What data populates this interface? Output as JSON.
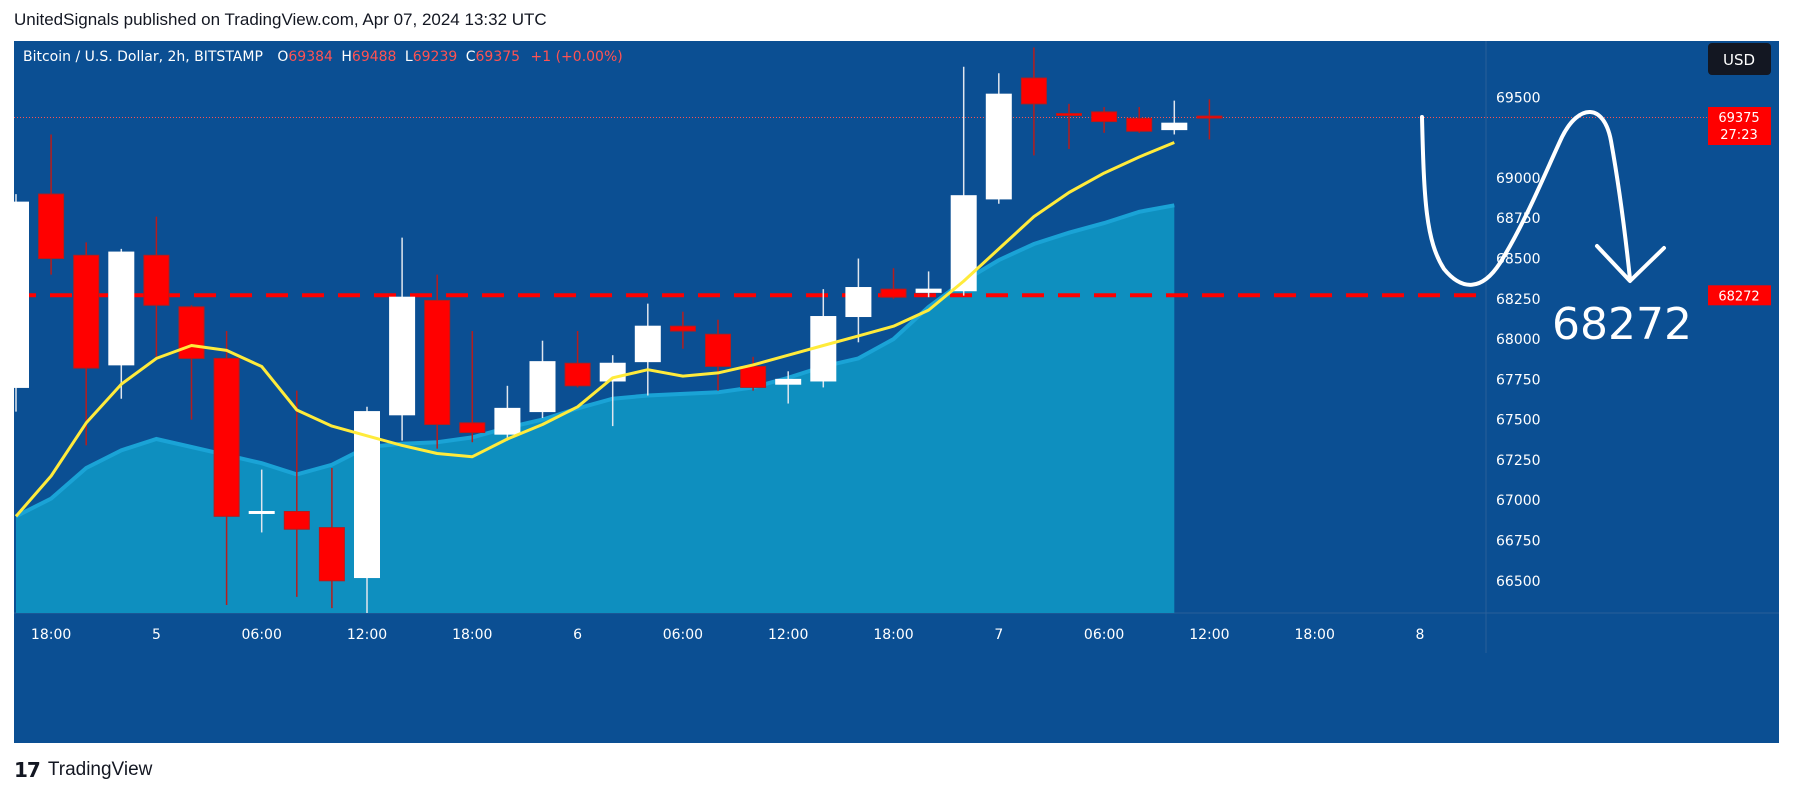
{
  "header": {
    "text": "UnitedSignals published on TradingView.com, Apr 07, 2024 13:32 UTC"
  },
  "legend": {
    "symbol": "Bitcoin / U.S. Dollar, 2h, BITSTAMP",
    "o_label": "O",
    "o": "69384",
    "h_label": "H",
    "h": "69488",
    "l_label": "L",
    "l": "69239",
    "c_label": "C",
    "c": "69375",
    "change": "+1 (+0.00%)"
  },
  "currency_button": "USD",
  "price_badge": {
    "price": "69375",
    "countdown": "27:23"
  },
  "level_badge": "68272",
  "annotation": "68272",
  "footer": {
    "logo": "17",
    "brand": "TradingView"
  },
  "colors": {
    "background": "#0b4f93",
    "bull": "#ffffff",
    "bear": "#ff0000",
    "wick_bear": "#b71c1c",
    "ma_fast": "#ffeb3b",
    "ma_slow_fill": "#0e8fbf",
    "level": "#ff0000"
  },
  "chart_data": {
    "type": "candlestick",
    "symbol": "Bitcoin / U.S. Dollar",
    "interval": "2h",
    "exchange": "BITSTAMP",
    "ylim": [
      66300,
      69850
    ],
    "yticks": [
      66500,
      66750,
      67000,
      67250,
      67500,
      67750,
      68000,
      68250,
      68500,
      68750,
      69000,
      69250,
      69500
    ],
    "xticks": [
      {
        "i": 1,
        "label": "18:00"
      },
      {
        "i": 4,
        "label": "5"
      },
      {
        "i": 7,
        "label": "06:00"
      },
      {
        "i": 10,
        "label": "12:00"
      },
      {
        "i": 13,
        "label": "18:00"
      },
      {
        "i": 16,
        "label": "6"
      },
      {
        "i": 19,
        "label": "06:00"
      },
      {
        "i": 22,
        "label": "12:00"
      },
      {
        "i": 25,
        "label": "18:00"
      },
      {
        "i": 28,
        "label": "7"
      },
      {
        "i": 31,
        "label": "06:00"
      },
      {
        "i": 34,
        "label": "12:00"
      },
      {
        "i": 37,
        "label": "18:00"
      },
      {
        "i": 40,
        "label": "8"
      }
    ],
    "candles": [
      {
        "o": 67700,
        "h": 68900,
        "l": 67550,
        "c": 68850
      },
      {
        "o": 68900,
        "h": 69270,
        "l": 68400,
        "c": 68500
      },
      {
        "o": 68520,
        "h": 68600,
        "l": 67340,
        "c": 67820
      },
      {
        "o": 67840,
        "h": 68560,
        "l": 67630,
        "c": 68540
      },
      {
        "o": 68520,
        "h": 68760,
        "l": 67880,
        "c": 68210
      },
      {
        "o": 68200,
        "h": 68210,
        "l": 67500,
        "c": 67880
      },
      {
        "o": 67880,
        "h": 68050,
        "l": 66350,
        "c": 66900
      },
      {
        "o": 66920,
        "h": 67190,
        "l": 66800,
        "c": 66930
      },
      {
        "o": 66930,
        "h": 67680,
        "l": 66400,
        "c": 66820
      },
      {
        "o": 66830,
        "h": 67200,
        "l": 66330,
        "c": 66500
      },
      {
        "o": 66520,
        "h": 67580,
        "l": 66300,
        "c": 67550
      },
      {
        "o": 67530,
        "h": 68630,
        "l": 67370,
        "c": 68260
      },
      {
        "o": 68240,
        "h": 68400,
        "l": 67320,
        "c": 67470
      },
      {
        "o": 67480,
        "h": 68050,
        "l": 67360,
        "c": 67420
      },
      {
        "o": 67410,
        "h": 67710,
        "l": 67370,
        "c": 67570
      },
      {
        "o": 67550,
        "h": 67990,
        "l": 67510,
        "c": 67860
      },
      {
        "o": 67850,
        "h": 68050,
        "l": 67700,
        "c": 67710
      },
      {
        "o": 67740,
        "h": 67900,
        "l": 67460,
        "c": 67850
      },
      {
        "o": 67860,
        "h": 68220,
        "l": 67650,
        "c": 68080
      },
      {
        "o": 68080,
        "h": 68170,
        "l": 67940,
        "c": 68050
      },
      {
        "o": 68030,
        "h": 68120,
        "l": 67680,
        "c": 67830
      },
      {
        "o": 67830,
        "h": 67890,
        "l": 67680,
        "c": 67700
      },
      {
        "o": 67720,
        "h": 67800,
        "l": 67600,
        "c": 67750
      },
      {
        "o": 67740,
        "h": 68310,
        "l": 67700,
        "c": 68140
      },
      {
        "o": 68140,
        "h": 68500,
        "l": 67980,
        "c": 68320
      },
      {
        "o": 68310,
        "h": 68440,
        "l": 68250,
        "c": 68260
      },
      {
        "o": 68290,
        "h": 68420,
        "l": 68260,
        "c": 68310
      },
      {
        "o": 68300,
        "h": 69690,
        "l": 68270,
        "c": 68890
      },
      {
        "o": 68870,
        "h": 69650,
        "l": 68840,
        "c": 69520
      },
      {
        "o": 69620,
        "h": 69810,
        "l": 69140,
        "c": 69460
      },
      {
        "o": 69400,
        "h": 69460,
        "l": 69180,
        "c": 69390
      },
      {
        "o": 69410,
        "h": 69440,
        "l": 69280,
        "c": 69350
      },
      {
        "o": 69370,
        "h": 69440,
        "l": 69280,
        "c": 69290
      },
      {
        "o": 69300,
        "h": 69480,
        "l": 69270,
        "c": 69340
      },
      {
        "o": 69384,
        "h": 69488,
        "l": 69239,
        "c": 69375
      }
    ],
    "ma_fast": [
      66900,
      67150,
      67480,
      67720,
      67880,
      67960,
      67930,
      67830,
      67560,
      67460,
      67400,
      67340,
      67290,
      67270,
      67380,
      67470,
      67580,
      67760,
      67810,
      67770,
      67790,
      67840,
      67900,
      67960,
      68020,
      68080,
      68180,
      68360,
      68560,
      68760,
      68910,
      69030,
      69130,
      69220
    ],
    "ma_slow": [
      66900,
      67010,
      67200,
      67310,
      67380,
      67330,
      67280,
      67230,
      67160,
      67220,
      67330,
      67350,
      67360,
      67390,
      67450,
      67500,
      67570,
      67630,
      67650,
      67660,
      67670,
      67700,
      67760,
      67830,
      67880,
      68000,
      68200,
      68360,
      68490,
      68590,
      68660,
      68720,
      68790,
      68830
    ],
    "level": 68272,
    "projection": "white hand-drawn zigzag pointing down to 68272"
  }
}
